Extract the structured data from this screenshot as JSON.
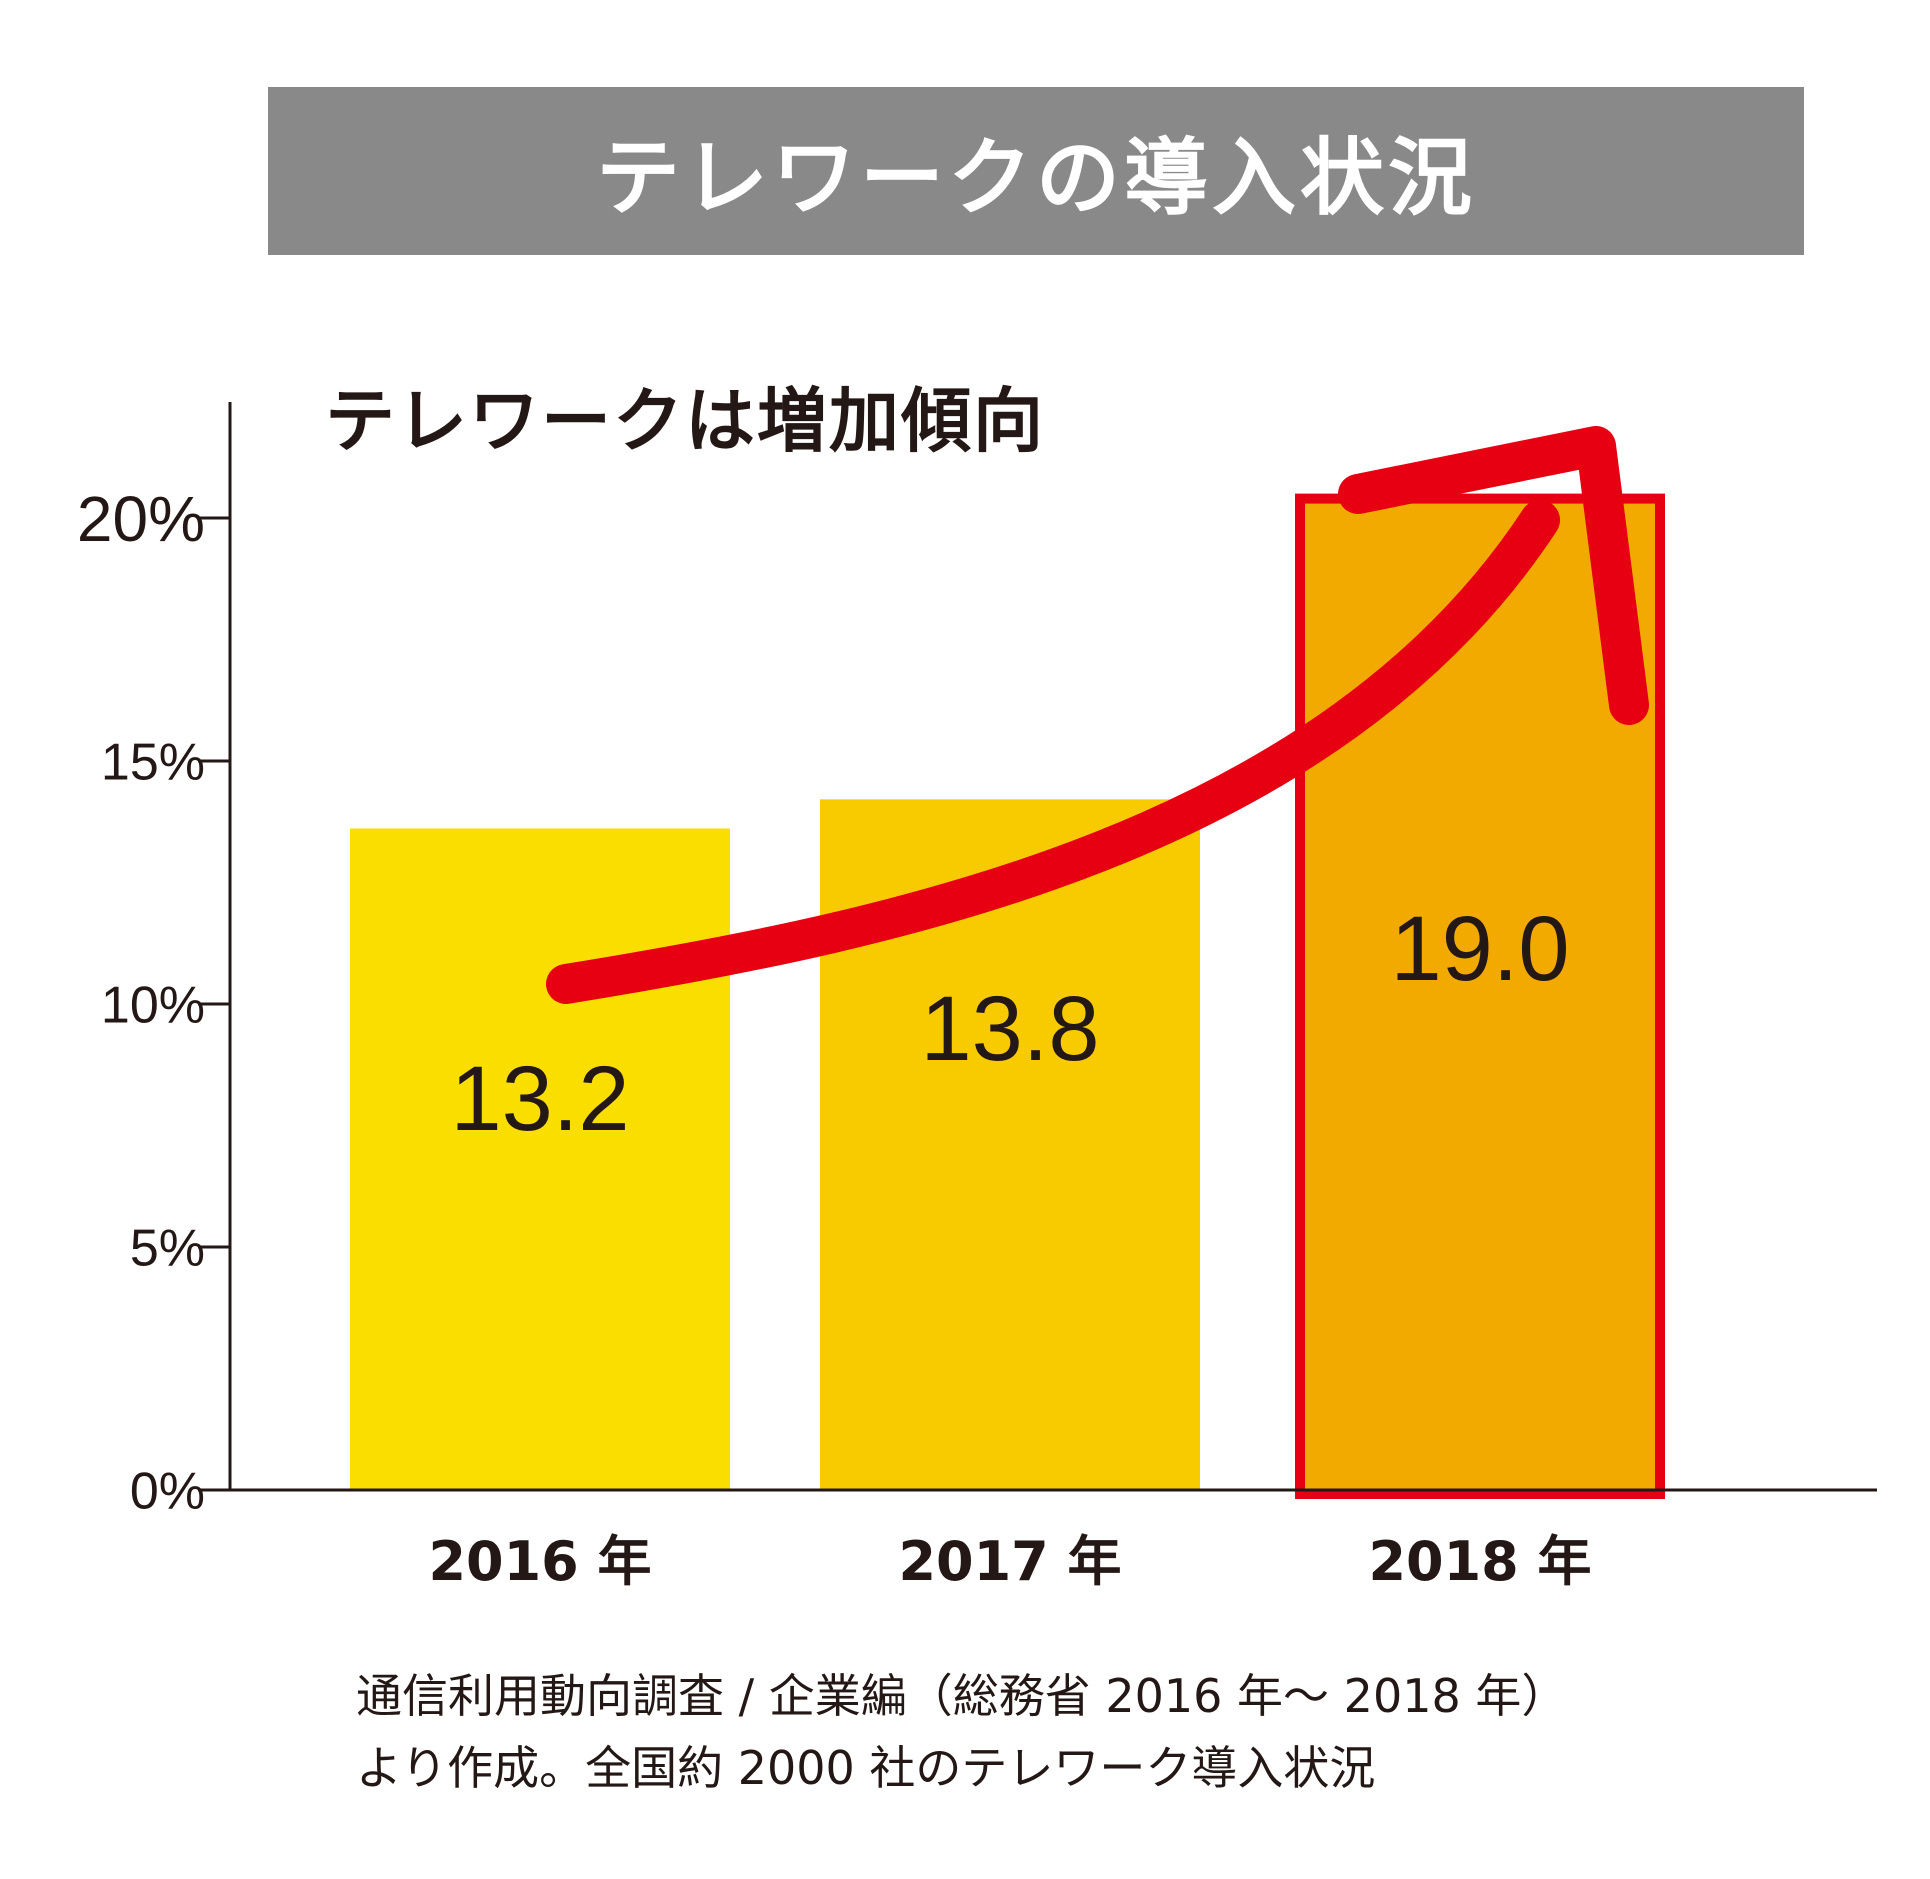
{
  "title": "テレワークの導入状況",
  "subtitle": "テレワークは増加傾向",
  "footnote": {
    "line1": "通信利用動向調査 / 企業編（総務省 2016 年～ 2018 年）",
    "line2": "より作成。全国約 2000 社のテレワーク導入状況"
  },
  "colors": {
    "banner": "#898989",
    "bar_2016": "#F9DE00",
    "bar_2017": "#F8CB00",
    "bar_2018": "#F2A900",
    "highlight": "#E60012",
    "axis": "#231815"
  },
  "chart_data": {
    "type": "bar",
    "categories": [
      "2016 年",
      "2017 年",
      "2018 年"
    ],
    "values": [
      13.2,
      13.8,
      19.0
    ],
    "value_labels": [
      "13.2",
      "13.8",
      "19.0"
    ],
    "ylim": [
      0,
      22.5
    ],
    "yticks": [
      0,
      5,
      10,
      15,
      20
    ],
    "ytick_labels": [
      "0%",
      "5%",
      "10%",
      "15%",
      "20%"
    ],
    "highlighted_category": "2018 年",
    "annotation": "upward trend arrow"
  }
}
